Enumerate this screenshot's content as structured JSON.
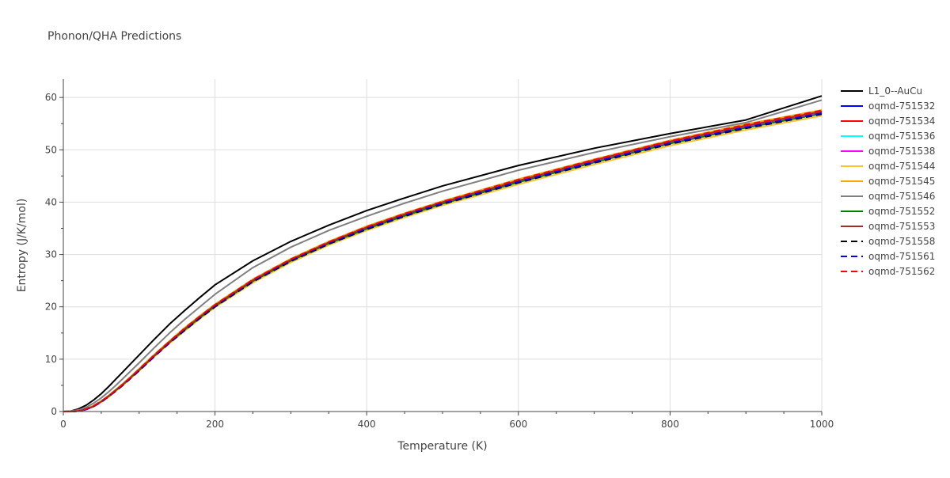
{
  "chart_data": {
    "type": "line",
    "title": "Phonon/QHA Predictions",
    "xlabel": "Temperature (K)",
    "ylabel": "Entropy (J/K/mol)",
    "xlim": [
      0,
      1000
    ],
    "ylim": [
      0,
      63.5
    ],
    "x_ticks": [
      0,
      200,
      400,
      600,
      800,
      1000
    ],
    "y_ticks": [
      0,
      10,
      20,
      30,
      40,
      50,
      60
    ],
    "grid": true,
    "legend_position": "right",
    "x": [
      0,
      10,
      20,
      30,
      40,
      50,
      60,
      70,
      80,
      90,
      100,
      120,
      140,
      160,
      180,
      200,
      250,
      300,
      350,
      400,
      450,
      500,
      600,
      700,
      800,
      900,
      1000
    ],
    "series": [
      {
        "name": "L1_0--AuCu",
        "color": "#000000",
        "dash": "solid",
        "values": [
          0,
          0.1,
          0.5,
          1.2,
          2.2,
          3.4,
          4.8,
          6.3,
          7.8,
          9.3,
          10.8,
          13.8,
          16.7,
          19.3,
          21.8,
          24.2,
          28.8,
          32.5,
          35.6,
          38.4,
          40.8,
          43.1,
          47.0,
          50.3,
          53.1,
          55.7,
          60.3
        ]
      },
      {
        "name": "oqmd-751532",
        "color": "#0000ff",
        "dash": "solid",
        "values": [
          0,
          0.0,
          0.1,
          0.4,
          1.0,
          1.9,
          2.9,
          4.1,
          5.3,
          6.6,
          7.9,
          10.6,
          13.2,
          15.6,
          17.9,
          20.1,
          24.9,
          28.8,
          32.1,
          34.9,
          37.4,
          39.7,
          43.8,
          47.6,
          51.3,
          54.3,
          57.0
        ]
      },
      {
        "name": "oqmd-751534",
        "color": "#ff0000",
        "dash": "solid",
        "values": [
          0,
          0.0,
          0.1,
          0.5,
          1.1,
          2.0,
          3.0,
          4.2,
          5.5,
          6.8,
          8.1,
          10.8,
          13.4,
          15.9,
          18.2,
          20.4,
          25.2,
          29.1,
          32.4,
          35.3,
          37.8,
          40.1,
          44.3,
          48.1,
          51.7,
          54.8,
          57.5
        ]
      },
      {
        "name": "oqmd-751536",
        "color": "#00ffff",
        "dash": "solid",
        "values": [
          0,
          0.0,
          0.1,
          0.4,
          1.0,
          1.9,
          2.9,
          4.1,
          5.4,
          6.7,
          8.0,
          10.7,
          13.3,
          15.7,
          18.0,
          20.2,
          25.0,
          28.9,
          32.2,
          35.0,
          37.5,
          39.8,
          43.9,
          47.8,
          51.4,
          54.4,
          57.1
        ]
      },
      {
        "name": "oqmd-751538",
        "color": "#ff00ff",
        "dash": "solid",
        "values": [
          0,
          0.0,
          0.1,
          0.4,
          1.0,
          1.9,
          2.9,
          4.1,
          5.4,
          6.7,
          8.0,
          10.7,
          13.3,
          15.8,
          18.1,
          20.3,
          25.1,
          29.0,
          32.3,
          35.1,
          37.6,
          39.9,
          44.0,
          47.9,
          51.5,
          54.5,
          57.2
        ]
      },
      {
        "name": "oqmd-751544",
        "color": "#f9c22e",
        "dash": "solid",
        "values": [
          0,
          0.0,
          0.1,
          0.4,
          0.9,
          1.8,
          2.8,
          4.0,
          5.2,
          6.5,
          7.8,
          10.5,
          13.0,
          15.4,
          17.7,
          19.9,
          24.6,
          28.5,
          31.8,
          34.6,
          37.1,
          39.4,
          43.4,
          47.2,
          50.8,
          53.8,
          56.5
        ]
      },
      {
        "name": "oqmd-751545",
        "color": "#ffa500",
        "dash": "solid",
        "values": [
          0,
          0.0,
          0.1,
          0.5,
          1.1,
          2.0,
          3.1,
          4.3,
          5.5,
          6.8,
          8.2,
          10.9,
          13.5,
          16.0,
          18.3,
          20.5,
          25.3,
          29.2,
          32.5,
          35.4,
          37.9,
          40.2,
          44.4,
          48.2,
          51.8,
          54.9,
          57.6
        ]
      },
      {
        "name": "oqmd-751546",
        "color": "#808080",
        "dash": "solid",
        "values": [
          0,
          0.1,
          0.3,
          0.8,
          1.6,
          2.6,
          3.8,
          5.1,
          6.5,
          7.9,
          9.3,
          12.2,
          15.0,
          17.6,
          20.0,
          22.4,
          27.5,
          31.4,
          34.6,
          37.3,
          39.8,
          42.1,
          46.1,
          49.5,
          52.5,
          55.2,
          59.5
        ]
      },
      {
        "name": "oqmd-751552",
        "color": "#008000",
        "dash": "solid",
        "values": [
          0,
          0.0,
          0.1,
          0.4,
          1.0,
          1.9,
          2.9,
          4.1,
          5.3,
          6.6,
          7.9,
          10.6,
          13.2,
          15.6,
          17.9,
          20.1,
          24.9,
          28.8,
          32.1,
          34.9,
          37.4,
          39.7,
          43.8,
          47.6,
          51.2,
          54.2,
          56.9
        ]
      },
      {
        "name": "oqmd-751553",
        "color": "#a52a2a",
        "dash": "solid",
        "values": [
          0,
          0.0,
          0.1,
          0.4,
          1.0,
          1.9,
          3.0,
          4.2,
          5.4,
          6.7,
          8.0,
          10.7,
          13.3,
          15.8,
          18.1,
          20.3,
          25.1,
          29.0,
          32.3,
          35.2,
          37.7,
          40.0,
          44.1,
          48.0,
          51.6,
          54.6,
          57.3
        ]
      },
      {
        "name": "oqmd-751558",
        "color": "#000000",
        "dash": "dash",
        "values": [
          0,
          0.0,
          0.1,
          0.4,
          1.0,
          1.8,
          2.9,
          4.0,
          5.2,
          6.5,
          7.8,
          10.5,
          13.1,
          15.5,
          17.8,
          20.0,
          24.8,
          28.7,
          32.0,
          34.8,
          37.3,
          39.6,
          43.7,
          47.5,
          51.1,
          54.1,
          56.8
        ]
      },
      {
        "name": "oqmd-751561",
        "color": "#0000ff",
        "dash": "dash",
        "values": [
          0,
          0.0,
          0.1,
          0.4,
          1.0,
          1.9,
          2.9,
          4.1,
          5.3,
          6.6,
          7.9,
          10.6,
          13.2,
          15.7,
          18.0,
          20.2,
          25.0,
          28.9,
          32.2,
          35.0,
          37.5,
          39.8,
          43.9,
          47.7,
          51.3,
          54.3,
          57.0
        ]
      },
      {
        "name": "oqmd-751562",
        "color": "#ff0000",
        "dash": "dash",
        "values": [
          0,
          0.0,
          0.1,
          0.5,
          1.1,
          2.0,
          3.0,
          4.2,
          5.4,
          6.7,
          8.1,
          10.8,
          13.4,
          15.9,
          18.2,
          20.4,
          25.2,
          29.1,
          32.4,
          35.3,
          37.8,
          40.1,
          44.3,
          48.1,
          51.7,
          54.8,
          57.5
        ]
      }
    ]
  }
}
